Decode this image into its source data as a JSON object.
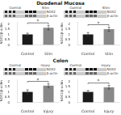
{
  "chart_data": [
    {
      "type": "bar",
      "title": "Duodenal Mucosa",
      "categories": [
        "Control",
        "Stim"
      ],
      "values": [
        1.0,
        1.65
      ],
      "errors": [
        0.13,
        0.22
      ],
      "colors": [
        "#1a1a1a",
        "#888888"
      ],
      "ylabel": "NOX2/β-actin",
      "ylim": [
        0,
        2.2
      ],
      "yticks": [
        0,
        0.5,
        1,
        1.5,
        2
      ],
      "grid": false,
      "annotations": [
        "Control",
        "Stim",
        "NOX2",
        "β-actin",
        "*"
      ]
    },
    {
      "type": "bar",
      "categories": [
        "Control",
        "Stim"
      ],
      "values": [
        1.0,
        1.5
      ],
      "errors": [
        0.18,
        0.2
      ],
      "colors": [
        "#1a1a1a",
        "#888888"
      ],
      "ylabel": "NOX2/β-actin",
      "ylim": [
        0,
        2.2
      ],
      "yticks": [
        0,
        0.5,
        1,
        1.5,
        2
      ],
      "grid": false,
      "annotations": [
        "Control",
        "Stim",
        "NOX2",
        "β-actin",
        "*"
      ]
    },
    {
      "type": "bar",
      "title": "Colon",
      "categories": [
        "Control",
        "Injury"
      ],
      "values": [
        1.0,
        1.6
      ],
      "errors": [
        0.2,
        0.18
      ],
      "colors": [
        "#1a1a1a",
        "#888888"
      ],
      "ylabel": "NOX2/β-actin",
      "ylim": [
        0,
        2.2
      ],
      "yticks": [
        0,
        0.5,
        1,
        1.5,
        2
      ],
      "grid": false,
      "annotations": [
        "Control",
        "Injury",
        "NOX2",
        "β-actin",
        "*"
      ]
    },
    {
      "type": "bar",
      "categories": [
        "Control",
        "Injury"
      ],
      "values": [
        1.0,
        1.45
      ],
      "errors": [
        0.15,
        0.18
      ],
      "colors": [
        "#1a1a1a",
        "#888888"
      ],
      "ylabel": "NOX2/β-actin",
      "ylim": [
        0,
        2.2
      ],
      "yticks": [
        0,
        0.5,
        1,
        1.5,
        2
      ],
      "grid": false,
      "annotations": [
        "Control",
        "Injury",
        "NOX2",
        "β-actin",
        "*"
      ]
    }
  ]
}
